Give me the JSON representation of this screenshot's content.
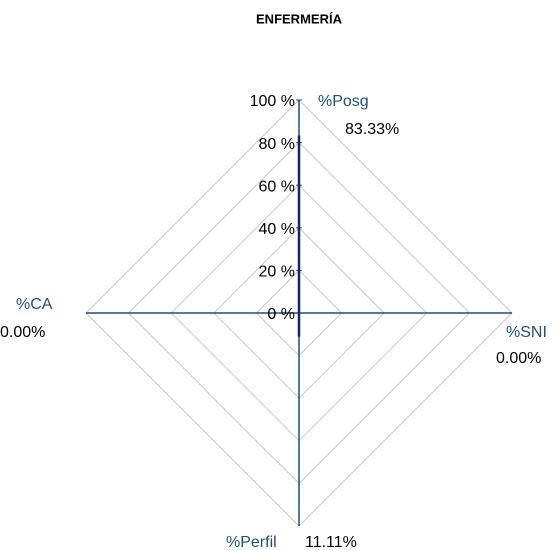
{
  "chart_data": {
    "type": "radar",
    "title": "ENFERMERÍA",
    "categories": [
      "%Posg",
      "%SNI",
      "%Perfil",
      "%CA"
    ],
    "series": [
      {
        "color": "#16295a",
        "values": [
          83.33,
          0,
          11.11,
          0
        ],
        "value_labels": [
          "83.33%",
          "0.00%",
          "11.11%",
          "0.00%"
        ]
      }
    ],
    "axis_color": "#1f4e79",
    "grid_color": "#c8c8c8",
    "rlim": [
      0,
      100
    ],
    "rticks": [
      {
        "value": 0,
        "label": "0 %"
      },
      {
        "value": 20,
        "label": "20 %"
      },
      {
        "value": 40,
        "label": "40 %"
      },
      {
        "value": 60,
        "label": "60 %"
      },
      {
        "value": 80,
        "label": "80 %"
      },
      {
        "value": 100,
        "label": "100 %"
      }
    ],
    "grid": true
  }
}
